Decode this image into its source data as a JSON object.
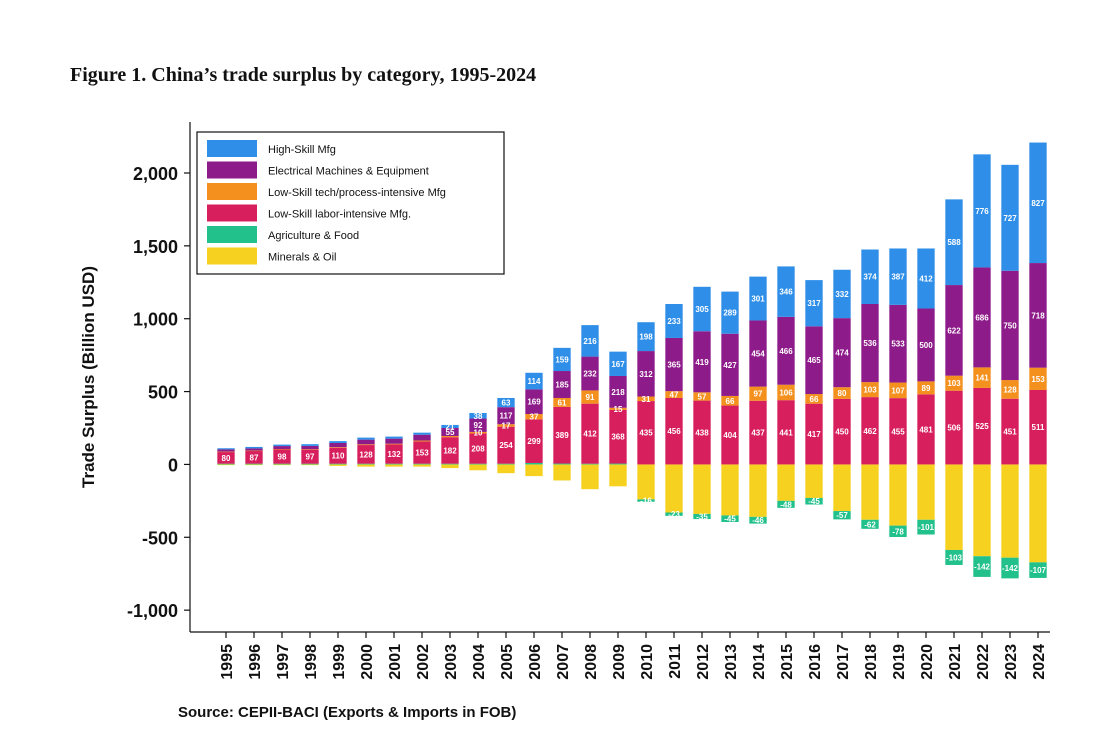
{
  "figure_title": "Figure 1. China’s trade surplus by category, 1995-2024",
  "source_note": "Source: CEPII-BACI (Exports & Imports in FOB)",
  "chart_data": {
    "type": "bar",
    "stacked": true,
    "title": "",
    "xlabel": "",
    "ylabel": "Trade Surplus (Billion USD)",
    "ylim": [
      -1150,
      2350
    ],
    "yticks": [
      -1000,
      -500,
      0,
      500,
      1000,
      1500,
      2000
    ],
    "ytick_labels": [
      "-1,000",
      "-500",
      "0",
      "500",
      "1,000",
      "1,500",
      "2,000"
    ],
    "grid": false,
    "legend_position": "top-left",
    "categories": [
      "1995",
      "1996",
      "1997",
      "1998",
      "1999",
      "2000",
      "2001",
      "2002",
      "2003",
      "2004",
      "2005",
      "2006",
      "2007",
      "2008",
      "2009",
      "2010",
      "2011",
      "2012",
      "2013",
      "2014",
      "2015",
      "2016",
      "2017",
      "2018",
      "2019",
      "2020",
      "2021",
      "2022",
      "2023",
      "2024"
    ],
    "series": [
      {
        "name": "Minerals & Oil",
        "color": "#f6d11f",
        "values": [
          -5,
          -5,
          -5,
          -5,
          -10,
          -15,
          -15,
          -15,
          -25,
          -40,
          -60,
          -80,
          -110,
          -170,
          -150,
          -240,
          -330,
          -340,
          -350,
          -360,
          -250,
          -230,
          -320,
          -380,
          -420,
          -380,
          -587,
          -630,
          -640,
          -672
        ],
        "labels": [
          "",
          "",
          "",
          "",
          "",
          "",
          "",
          "",
          "",
          "",
          "",
          "",
          "",
          "",
          "",
          "",
          "",
          "",
          "",
          "",
          "",
          "",
          "",
          "",
          "",
          "",
          "",
          "",
          "",
          ""
        ]
      },
      {
        "name": "Agriculture & Food",
        "color": "#22c08b",
        "values": [
          5,
          5,
          5,
          5,
          5,
          5,
          5,
          5,
          5,
          5,
          5,
          10,
          6,
          5,
          6,
          -16,
          -23,
          -35,
          -45,
          -46,
          -48,
          -45,
          -57,
          -62,
          -78,
          -101,
          -103,
          -142,
          -142,
          -107
        ],
        "labels": [
          "",
          "",
          "",
          "",
          "",
          "",
          "",
          "",
          "",
          "",
          "",
          "",
          "",
          "",
          "",
          "-16",
          "-23",
          "-35",
          "-45",
          "-46",
          "-48",
          "-45",
          "-57",
          "-62",
          "-78",
          "-101",
          "-103",
          "-142",
          "-142",
          "-107"
        ]
      },
      {
        "name": "Low-Skill labor-intensive Mfg.",
        "color": "#d81f5e",
        "values": [
          80,
          87,
          98,
          97,
          110,
          128,
          132,
          153,
          182,
          208,
          254,
          299,
          389,
          412,
          368,
          435,
          456,
          438,
          404,
          437,
          441,
          417,
          450,
          462,
          455,
          481,
          506,
          525,
          451,
          511
        ],
        "labels": [
          "80",
          "87",
          "98",
          "97",
          "110",
          "128",
          "132",
          "153",
          "182",
          "208",
          "254",
          "299",
          "389",
          "412",
          "368",
          "435",
          "456",
          "438",
          "404",
          "437",
          "441",
          "417",
          "450",
          "462",
          "455",
          "481",
          "506",
          "525",
          "451",
          "511"
        ]
      },
      {
        "name": "Low-Skill tech/process-intensive Mfg",
        "color": "#f4901e",
        "values": [
          3,
          3,
          3,
          3,
          4,
          5,
          5,
          6,
          8,
          10,
          17,
          37,
          61,
          91,
          15,
          31,
          47,
          57,
          66,
          97,
          106,
          66,
          80,
          103,
          107,
          89,
          103,
          141,
          128,
          153
        ],
        "labels": [
          "",
          "",
          "",
          "",
          "",
          "",
          "",
          "",
          "",
          "10",
          "17",
          "37",
          "61",
          "91",
          "15",
          "31",
          "47",
          "57",
          "66",
          "97",
          "106",
          "66",
          "80",
          "103",
          "107",
          "89",
          "103",
          "141",
          "128",
          "153"
        ]
      },
      {
        "name": "Electrical Machines & Equipment",
        "color": "#8e1b8a",
        "values": [
          15,
          15,
          20,
          22,
          28,
          32,
          35,
          40,
          55,
          92,
          117,
          169,
          185,
          232,
          218,
          312,
          365,
          419,
          427,
          454,
          466,
          465,
          474,
          536,
          533,
          500,
          622,
          686,
          750,
          718
        ],
        "labels": [
          "",
          "",
          "",
          "",
          "",
          "",
          "",
          "",
          "55",
          "92",
          "117",
          "169",
          "185",
          "232",
          "218",
          "312",
          "365",
          "419",
          "427",
          "454",
          "466",
          "465",
          "474",
          "536",
          "533",
          "500",
          "622",
          "686",
          "750",
          "718"
        ]
      },
      {
        "name": "High-Skill Mfg",
        "color": "#2f8fe8",
        "values": [
          8,
          10,
          10,
          12,
          13,
          14,
          14,
          14,
          21,
          38,
          63,
          114,
          159,
          216,
          167,
          198,
          233,
          305,
          289,
          301,
          346,
          317,
          332,
          374,
          387,
          412,
          588,
          776,
          727,
          827
        ],
        "labels": [
          "",
          "",
          "",
          "",
          "",
          "",
          "",
          "",
          "21",
          "38",
          "63",
          "114",
          "159",
          "216",
          "167",
          "198",
          "233",
          "305",
          "289",
          "301",
          "346",
          "317",
          "332",
          "374",
          "387",
          "412",
          "588",
          "776",
          "727",
          "827"
        ]
      }
    ],
    "legend_order": [
      "High-Skill Mfg",
      "Electrical Machines & Equipment",
      "Low-Skill tech/process-intensive Mfg",
      "Low-Skill labor-intensive Mfg.",
      "Agriculture & Food",
      "Minerals & Oil"
    ]
  }
}
